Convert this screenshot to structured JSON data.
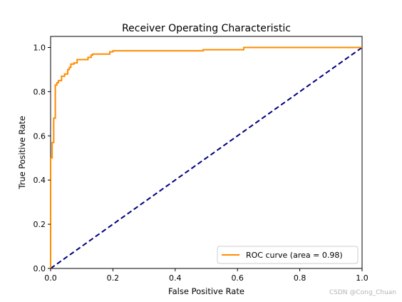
{
  "chart_data": {
    "type": "line",
    "title": "Receiver Operating Characteristic",
    "xlabel": "False Positive Rate",
    "ylabel": "True Positive Rate",
    "xlim": [
      0.0,
      1.0
    ],
    "ylim": [
      0.0,
      1.05
    ],
    "x_ticks": [
      "0.0",
      "0.2",
      "0.4",
      "0.6",
      "0.8",
      "1.0"
    ],
    "y_ticks": [
      "0.0",
      "0.2",
      "0.4",
      "0.6",
      "0.8",
      "1.0"
    ],
    "grid": false,
    "legend_position": "lower-right",
    "series": [
      {
        "name": "ROC curve (area = 0.98)",
        "color": "#ff8c00",
        "style": "solid",
        "x": [
          0.0,
          0.0,
          0.005,
          0.005,
          0.01,
          0.01,
          0.015,
          0.015,
          0.02,
          0.02,
          0.025,
          0.025,
          0.035,
          0.035,
          0.045,
          0.045,
          0.055,
          0.055,
          0.06,
          0.06,
          0.065,
          0.065,
          0.075,
          0.075,
          0.085,
          0.085,
          0.12,
          0.12,
          0.13,
          0.13,
          0.135,
          0.135,
          0.19,
          0.19,
          0.2,
          0.2,
          0.49,
          0.49,
          0.62,
          0.62,
          1.0
        ],
        "y": [
          0.0,
          0.5,
          0.5,
          0.57,
          0.57,
          0.68,
          0.68,
          0.83,
          0.83,
          0.84,
          0.84,
          0.85,
          0.85,
          0.87,
          0.87,
          0.88,
          0.88,
          0.9,
          0.9,
          0.91,
          0.91,
          0.925,
          0.925,
          0.93,
          0.93,
          0.945,
          0.945,
          0.955,
          0.955,
          0.965,
          0.965,
          0.97,
          0.97,
          0.98,
          0.98,
          0.985,
          0.985,
          0.99,
          0.99,
          1.0,
          1.0
        ]
      },
      {
        "name": "",
        "color": "#000080",
        "style": "dashed",
        "x": [
          0.0,
          1.0
        ],
        "y": [
          0.0,
          1.0
        ]
      }
    ]
  },
  "watermark": "CSDN @Cong_Chuan"
}
